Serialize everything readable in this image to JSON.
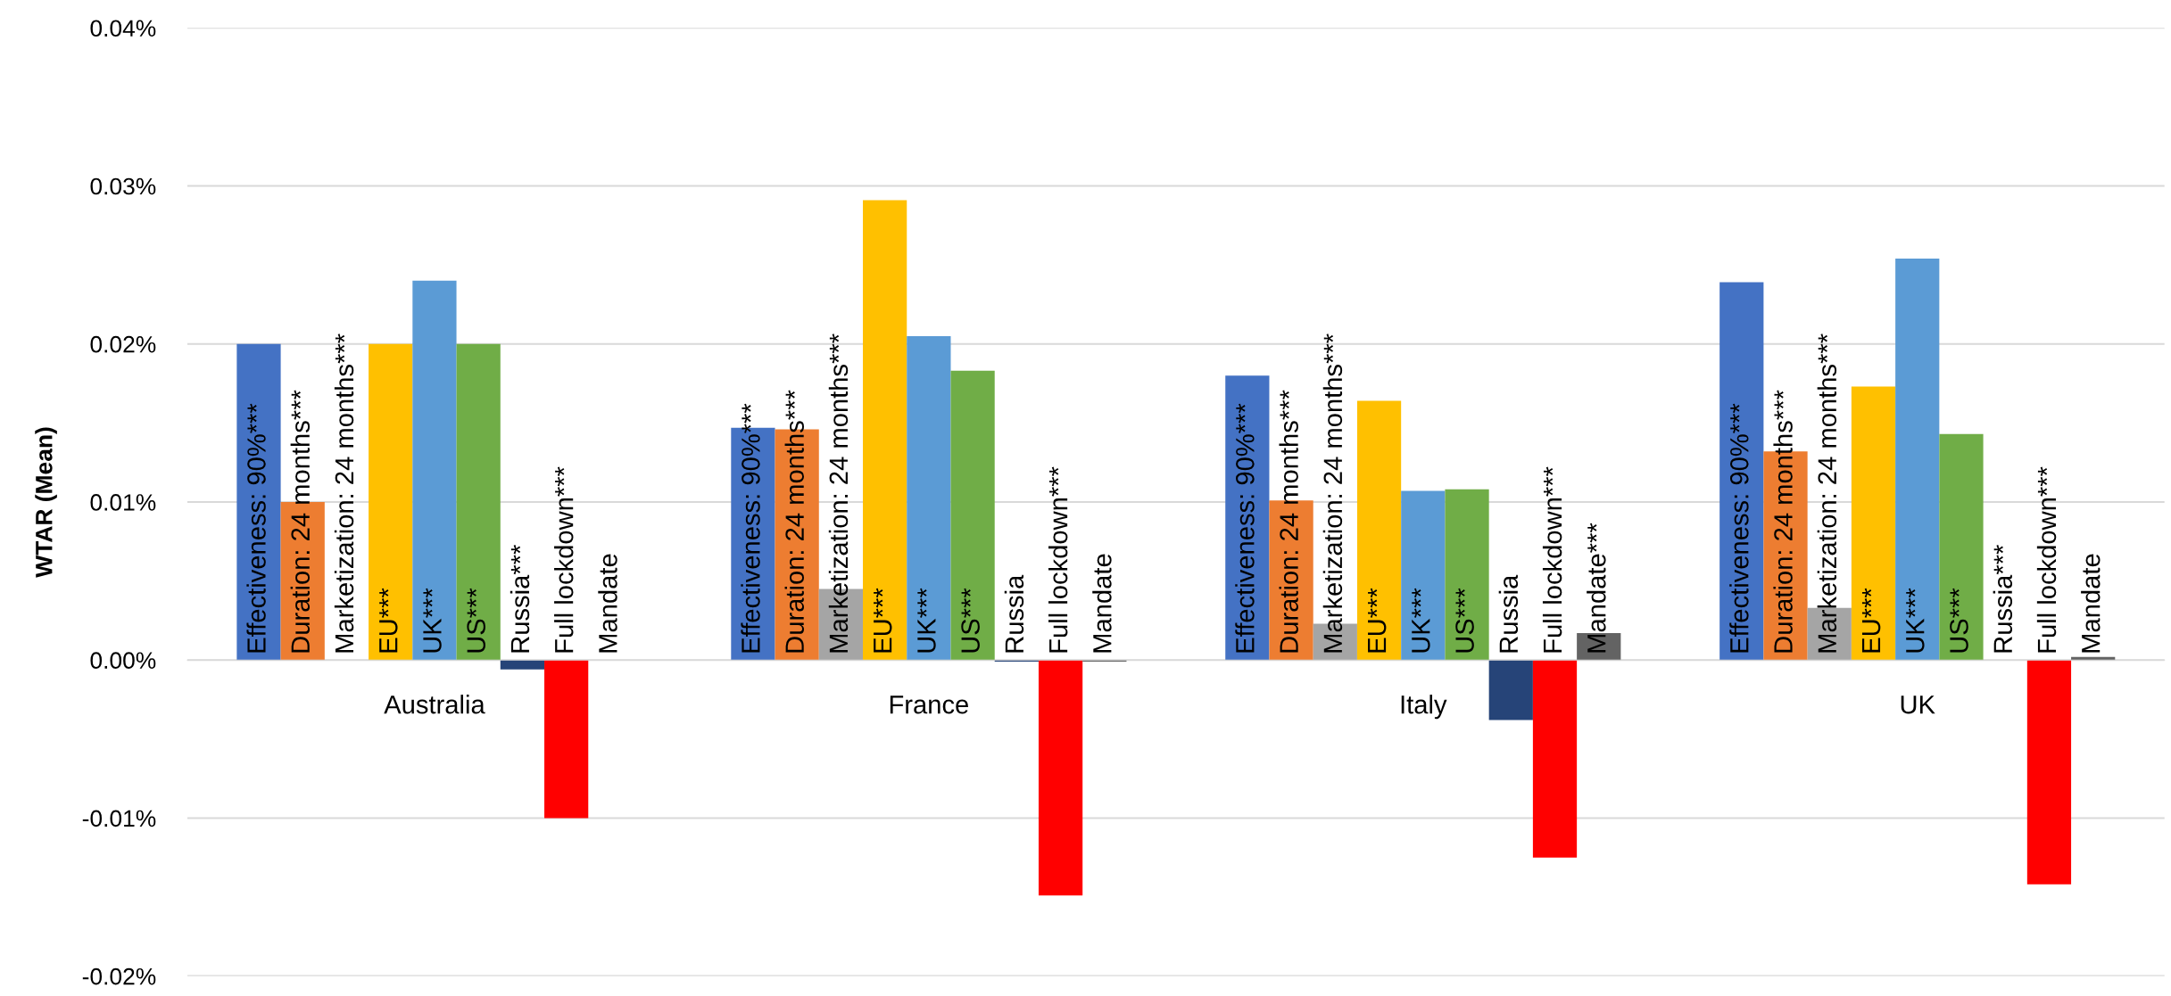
{
  "chart_data": {
    "type": "bar",
    "ylabel": "WTAR (Mean)",
    "categories": [
      "Australia",
      "France",
      "Italy",
      "UK"
    ],
    "ylim": [
      -0.02,
      0.04
    ],
    "yticks": [
      {
        "value": -0.02,
        "label": "-0.02%"
      },
      {
        "value": -0.01,
        "label": "-0.01%"
      },
      {
        "value": 0,
        "label": "0.00%"
      },
      {
        "value": 0.01,
        "label": "0.01%"
      },
      {
        "value": 0.02,
        "label": "0.02%"
      },
      {
        "value": 0.03,
        "label": "0.03%"
      },
      {
        "value": 0.04,
        "label": "0.04%"
      }
    ],
    "grid": "y",
    "series": [
      {
        "color": "#4472c4",
        "values": [
          0.02,
          0.0147,
          0.018,
          0.0239
        ]
      },
      {
        "color": "#ed7d31",
        "values": [
          0.01,
          0.0146,
          0.0101,
          0.0132
        ]
      },
      {
        "color": "#a5a5a5",
        "values": [
          0,
          0.0045,
          0.0023,
          0.0033
        ]
      },
      {
        "color": "#ffc000",
        "values": [
          0.02,
          0.0291,
          0.0164,
          0.0173
        ]
      },
      {
        "color": "#5b9bd5",
        "values": [
          0.024,
          0.0205,
          0.0107,
          0.0254
        ]
      },
      {
        "color": "#70ad47",
        "values": [
          0.02,
          0.0183,
          0.0108,
          0.0143
        ]
      },
      {
        "color": "#264478",
        "values": [
          -0.0006,
          -0.0001,
          -0.0038,
          0
        ]
      },
      {
        "color": "#ff0000",
        "values": [
          -0.01,
          -0.0149,
          -0.0125,
          -0.0142
        ]
      },
      {
        "color": "#636363",
        "values": [
          0,
          -0.0001,
          0.0017,
          0.0002
        ]
      }
    ],
    "annotations": [
      "Effectiveness: 90%***",
      "Duration: 24 months***",
      "Marketization: 24 months***",
      "EU***",
      "UK***",
      "US***",
      "Russia***",
      "Full lockdown***",
      "Mandate",
      "Effectiveness: 90%***",
      "Duration: 24 months***",
      "Marketization: 24 months***",
      "EU***",
      "UK***",
      "US***",
      "Russia",
      "Full lockdown***",
      "Mandate",
      "Effectiveness: 90%***",
      "Duration: 24 months***",
      "Marketization: 24 months***",
      "EU***",
      "UK***",
      "US***",
      "Russia",
      "Full lockdown***",
      "Mandate***",
      "Effectiveness: 90%***",
      "Duration: 24 months***",
      "Marketization: 24 months***",
      "EU***",
      "UK***",
      "US***",
      "Russia***",
      "Full lockdown***",
      "Mandate"
    ]
  }
}
